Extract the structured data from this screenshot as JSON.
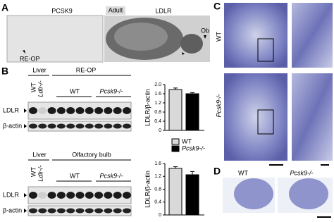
{
  "panel_a": {
    "label": "A",
    "left_title": "PCSK9",
    "center_tag": "Adult",
    "right_title": "LDLR",
    "arrow_left": "RE-OP",
    "arrow_right": "Ob"
  },
  "panel_b": {
    "label": "B",
    "series": [
      {
        "name": "WT",
        "color": "#d9d9d9"
      },
      {
        "name": "Pcsk9-/-",
        "color": "#000000"
      }
    ],
    "blots": [
      {
        "tissue_a": "Liver",
        "tissue_b": "RE-OP",
        "lane_wt": "WT",
        "lane_ko": "Ldlr-/-",
        "group_wt": "WT",
        "group_ko": "Pcsk9-/-",
        "row_1": "LDLR",
        "row_2": "β-actin"
      },
      {
        "tissue_a": "Liver",
        "tissue_b": "Olfactory bulb",
        "lane_wt": "WT",
        "lane_ko": "Ldlr-/-",
        "group_wt": "WT",
        "group_ko": "Pcsk9-/-",
        "row_1": "LDLR",
        "row_2": "β-actin"
      }
    ],
    "charts": [
      {
        "type": "bar",
        "ylabel": "LDLR/β-actin",
        "values": [
          1.78,
          1.6
        ],
        "errors": [
          0.07,
          0.05
        ],
        "ylim": [
          0,
          2
        ],
        "yticks": [
          0,
          0.4,
          0.8,
          1.2,
          1.6,
          {
            "value": 2,
            "label": "2.0"
          }
        ]
      },
      {
        "type": "bar",
        "ylabel": "LDLR/β-actin",
        "values": [
          1.45,
          1.25
        ],
        "errors": [
          0.05,
          0.1
        ],
        "ylim": [
          0,
          1.6
        ],
        "yticks": [
          0,
          0.4,
          0.8,
          1.2,
          1.6
        ]
      }
    ]
  },
  "panel_c": {
    "label": "C",
    "row_1": "WT",
    "row_2": "Pcsk9-/-"
  },
  "panel_d": {
    "label": "D",
    "left": "WT",
    "right": "Pcsk9-/-"
  }
}
